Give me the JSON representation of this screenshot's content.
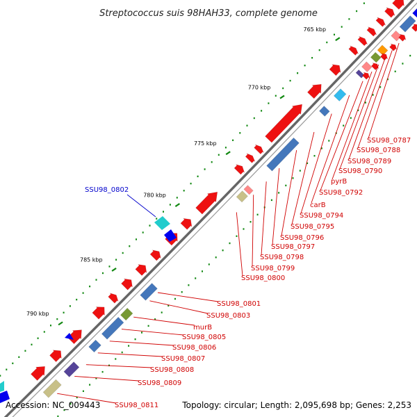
{
  "title": "Streptococcus suis 98HAH33, complete genome",
  "accession": "Accession: NC_009443",
  "summary": "Topology: circular; Length: 2,095,698 bp; Genes: 2,253",
  "kbp_labels": [
    "765 kbp",
    "770 kbp",
    "775 kbp",
    "780 kbp",
    "785 kbp",
    "790 kbp"
  ],
  "gene_labels_red": [
    "SSU98_0787",
    "SSU98_0788",
    "SSU98_0789",
    "SSU98_0790",
    "pyrB",
    "SSU98_0792",
    "carB",
    "SSU98_0794",
    "SSU98_0795",
    "SSU98_0796",
    "SSU98_0797",
    "SSU98_0798",
    "SSU98_0799",
    "SSU98_0800",
    "SSU98_0801",
    "SSU98_0803",
    "murB",
    "SSU98_0805",
    "SSU98_0806",
    "SSU98_0807",
    "SSU98_0808",
    "SSU98_0809",
    "SSU98_0811"
  ],
  "gene_label_blue": "SSU98_0802",
  "colors": {
    "cds": "#ee1111",
    "trna": "#ff8888",
    "light_blue": "#33bbee",
    "steel_blue": "#4477bb",
    "dark_blue": "#0000ee",
    "olive": "#c8c088",
    "green": "#779933",
    "orange": "#ff9900",
    "purple": "#554499",
    "cyan": "#22cccc",
    "tick_green": "#118811",
    "backbone": "#666666",
    "label_red": "#d00000",
    "label_blue": "#0000cc"
  }
}
